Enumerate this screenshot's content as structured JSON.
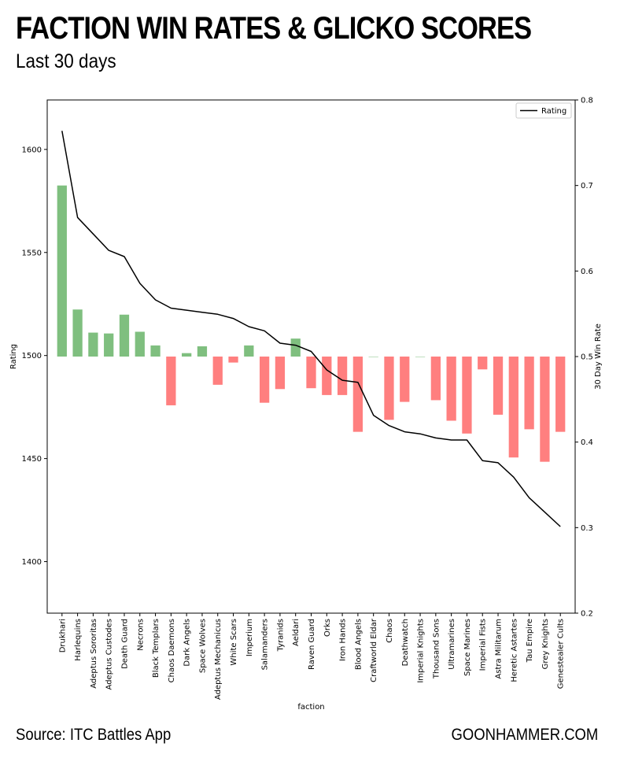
{
  "header": {
    "title": "FACTION WIN RATES & GLICKO SCORES",
    "subtitle": "Last 30 days"
  },
  "footer": {
    "source": "Source: ITC Battles App",
    "brand": "GOONHAMMER.COM"
  },
  "colors": {
    "above": "#7fbf7f",
    "below": "#ff7f7f",
    "line": "#000000"
  },
  "chart_data": {
    "type": "bar",
    "title": "FACTION WIN RATES & GLICKO SCORES",
    "subtitle": "Last 30 days",
    "xlabel": "faction",
    "ylabel": "Rating",
    "y2label": "30 Day Win Rate",
    "ylim": [
      1375,
      1624
    ],
    "y2lim": [
      0.2,
      0.8
    ],
    "yticks": [
      1400,
      1450,
      1500,
      1550,
      1600
    ],
    "y2ticks": [
      0.2,
      0.3,
      0.4,
      0.5,
      0.6,
      0.7,
      0.8
    ],
    "baseline": 0.5,
    "grid": false,
    "legend": {
      "position": "top-right",
      "entries": [
        "Rating"
      ]
    },
    "categories": [
      "Drukhari",
      "Harlequins",
      "Adeptus Sororitas",
      "Adeptus Custodes",
      "Death Guard",
      "Necrons",
      "Black Templars",
      "Chaos Daemons",
      "Dark Angels",
      "Space Wolves",
      "Adeptus Mechanicus",
      "White Scars",
      "Imperium",
      "Salamanders",
      "Tyranids",
      "Aeldari",
      "Raven Guard",
      "Orks",
      "Iron Hands",
      "Blood Angels",
      "Craftworld Eldar",
      "Chaos",
      "Deathwatch",
      "Imperial Knights",
      "Thousand Sons",
      "Ultramarines",
      "Space Marines",
      "Imperial Fists",
      "Astra Militarum",
      "Heretic Astartes",
      "Tau Empire",
      "Grey Knights",
      "Genestealer Cults"
    ],
    "series": [
      {
        "name": "30 Day Win Rate",
        "type": "bar",
        "axis": "right",
        "values": [
          0.7,
          0.555,
          0.528,
          0.527,
          0.549,
          0.529,
          0.513,
          0.443,
          0.504,
          0.512,
          0.467,
          0.493,
          0.513,
          0.446,
          0.462,
          0.521,
          0.463,
          0.455,
          0.455,
          0.412,
          0.5,
          0.426,
          0.447,
          0.5,
          0.449,
          0.425,
          0.41,
          0.485,
          0.432,
          0.382,
          0.415,
          0.377,
          0.412
        ]
      },
      {
        "name": "Rating",
        "type": "line",
        "axis": "left",
        "values": [
          1609,
          1567,
          1559,
          1551,
          1548,
          1535,
          1527,
          1523,
          1522,
          1521,
          1520,
          1518,
          1514,
          1512,
          1506,
          1505,
          1502,
          1493,
          1488,
          1487,
          1471,
          1466,
          1463,
          1462,
          1460,
          1459,
          1459,
          1449,
          1448,
          1441,
          1431,
          1424,
          1417
        ]
      }
    ]
  }
}
